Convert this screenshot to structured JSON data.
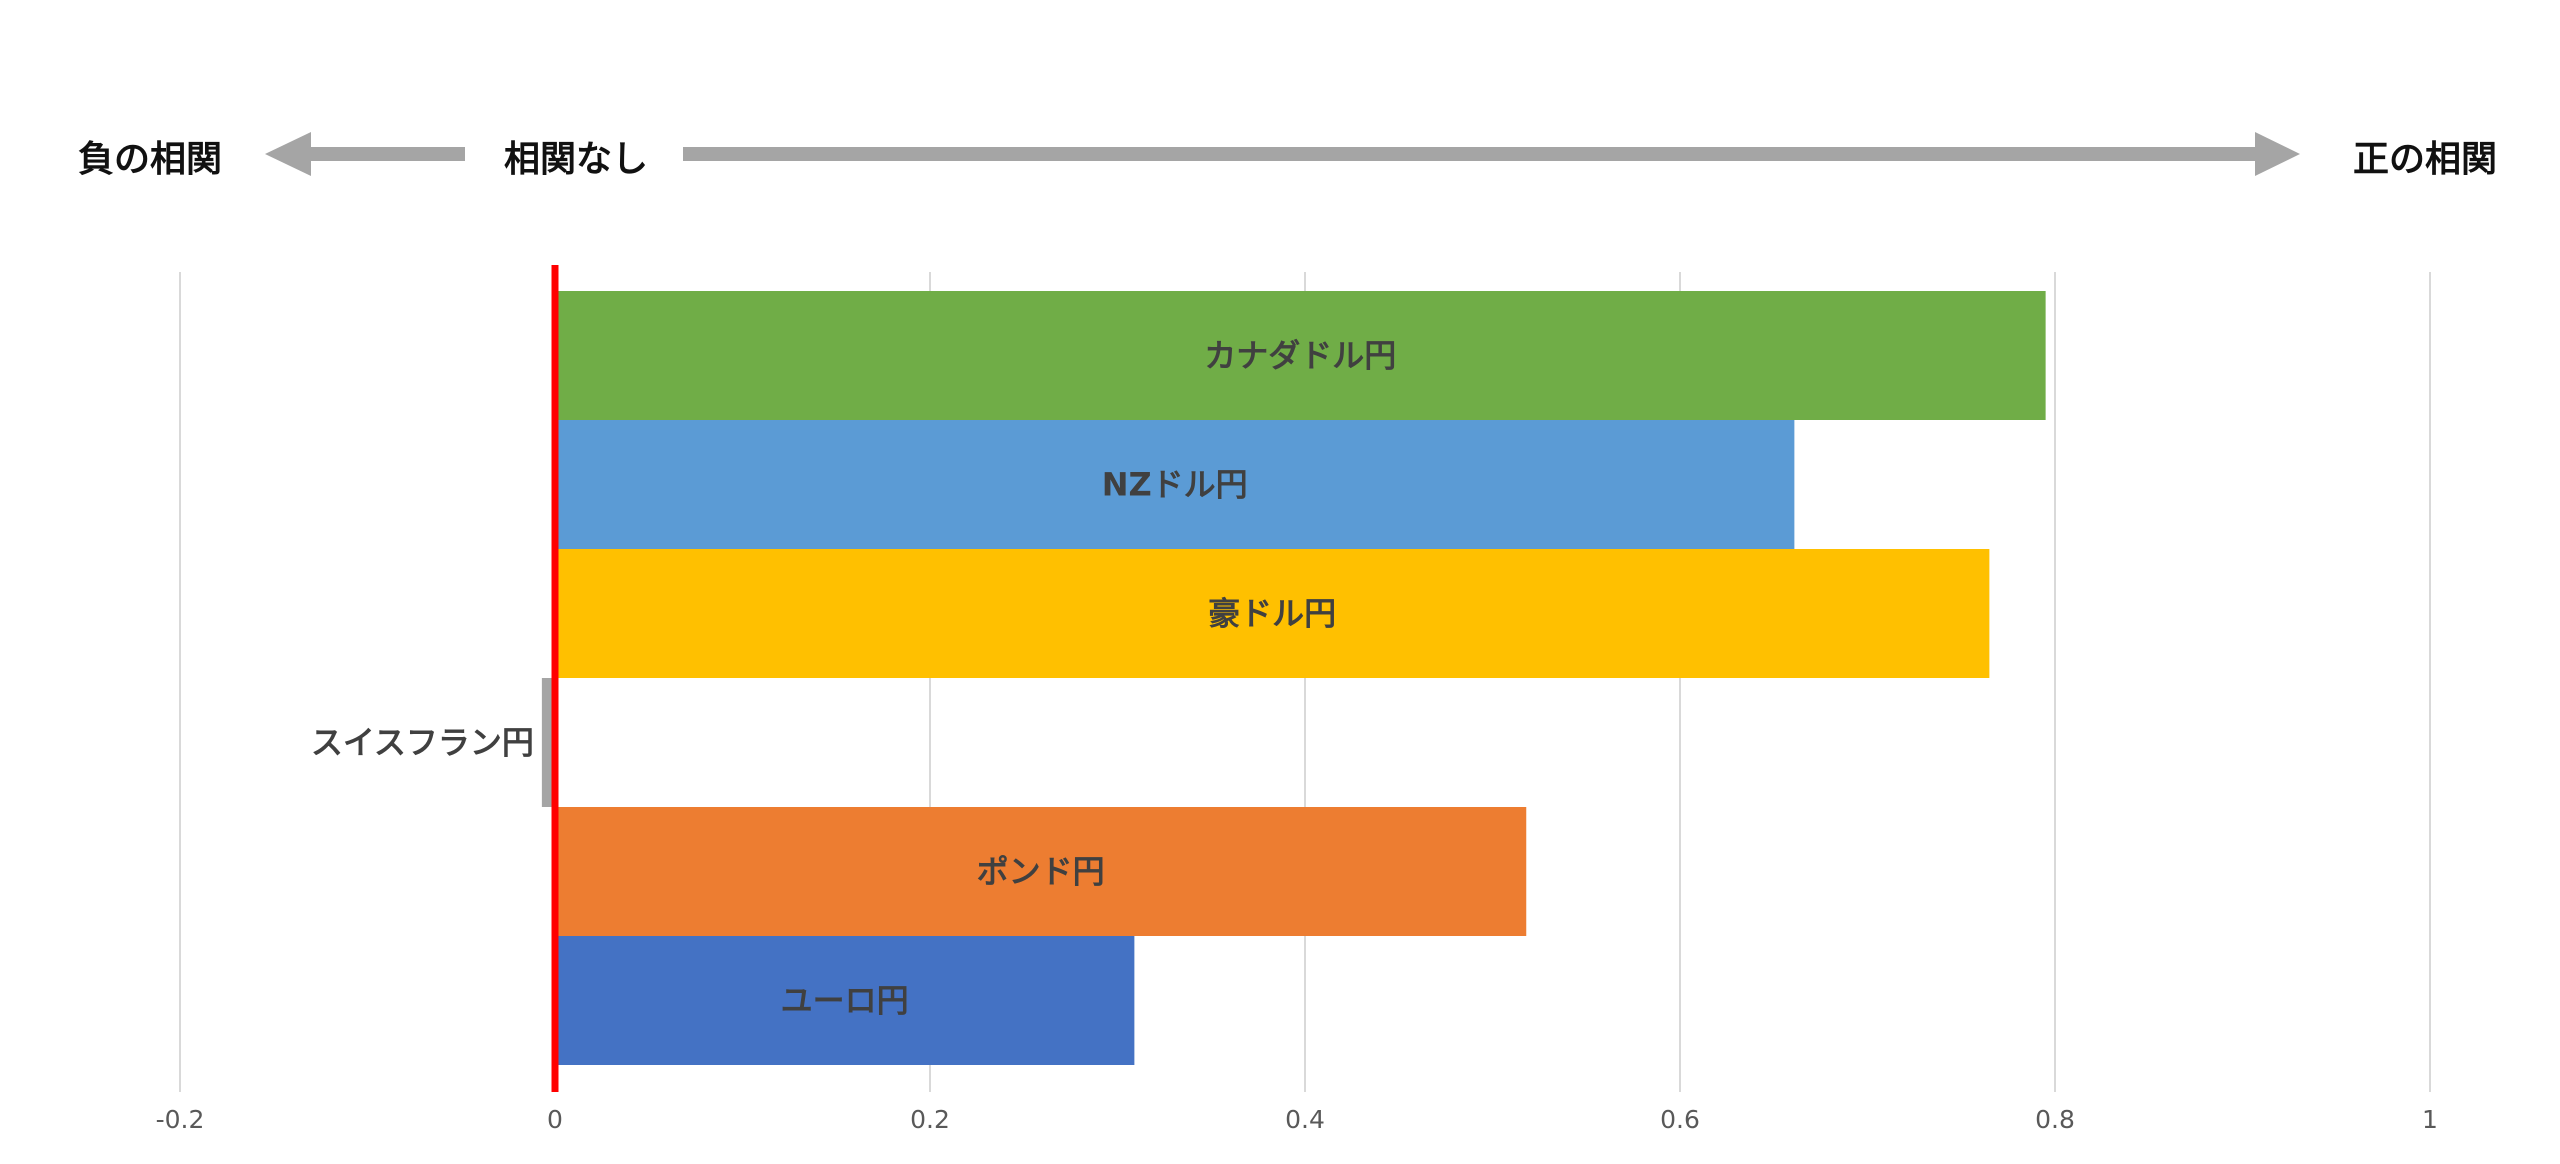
{
  "header": {
    "negative_label": "負の相関",
    "neutral_label": "相関なし",
    "positive_label": "正の相関",
    "arrow_color": "#A5A5A5"
  },
  "chart_data": {
    "type": "bar",
    "orientation": "horizontal",
    "categories": [
      "カナダドル円",
      "NZドル円",
      "豪ドル円",
      "スイスフラン円",
      "ポンド円",
      "ユーロ円"
    ],
    "values": [
      0.795,
      0.661,
      0.765,
      -0.007,
      0.518,
      0.309
    ],
    "colors": [
      "#70AD47",
      "#5B9BD5",
      "#FFC000",
      "#A5A5A5",
      "#ED7D31",
      "#4472C4"
    ],
    "xlim": [
      -0.2,
      1
    ],
    "ticks": [
      -0.2,
      0,
      0.2,
      0.4,
      0.6,
      0.8,
      1
    ],
    "tick_labels": [
      "-0.2",
      "0",
      "0.2",
      "0.4",
      "0.6",
      "0.8",
      "1"
    ],
    "grid": true,
    "zero_line_color": "#FF0000",
    "title": "",
    "xlabel": "",
    "ylabel": ""
  }
}
